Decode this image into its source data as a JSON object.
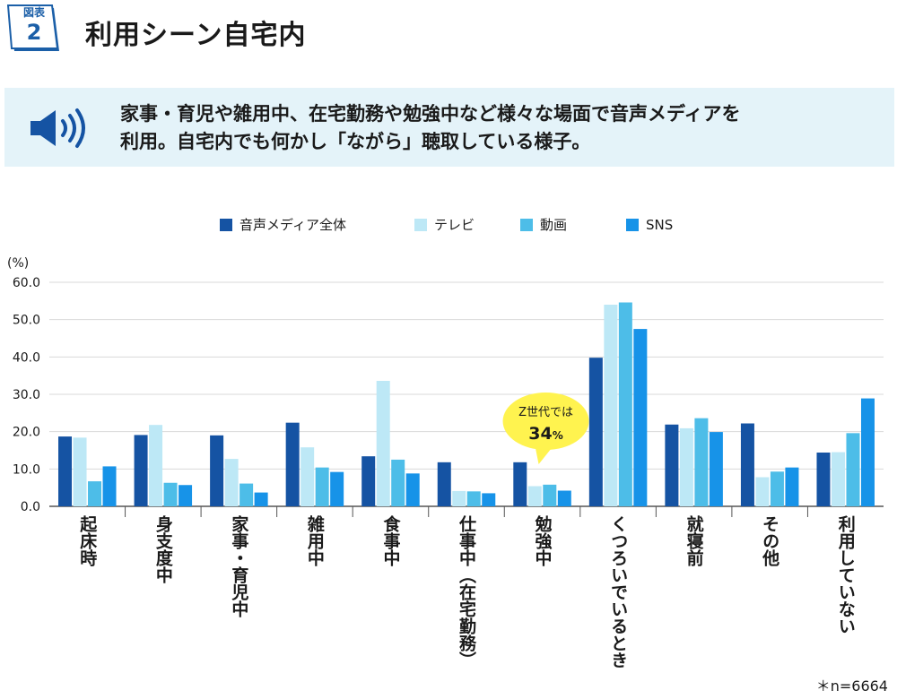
{
  "figure": {
    "label": "図表",
    "number": "2",
    "title": "利用シーン自宅内"
  },
  "summary": {
    "icon": "speaker-icon",
    "lines": [
      "家事・育児や雑用中、在宅勤務や勉強中など様々な場面で音声メディアを",
      "利用。自宅内でも何かし「ながら」聴取している様子。"
    ]
  },
  "colors": {
    "all": "#1553a3",
    "tv": "#bde8f6",
    "video": "#4dbde8",
    "sns": "#1793e8",
    "badge": "#1b5fa8",
    "bubble": "#fff34f"
  },
  "chart_data": {
    "type": "bar",
    "title": "",
    "ylabel": "(%)",
    "ylim": [
      0,
      60
    ],
    "yticks": [
      "0.0",
      "10.0",
      "20.0",
      "30.0",
      "40.0",
      "50.0",
      "60.0"
    ],
    "grid": true,
    "legend_position": "top",
    "categories": [
      "起床時",
      "身支度中",
      "家事・育児中",
      "雑用中",
      "食事中",
      "仕事中（在宅勤務）",
      "勉強中",
      "くつろいでいるとき",
      "就寝前",
      "その他",
      "利用していない"
    ],
    "series": [
      {
        "name": "音声メディア全体",
        "values": [
          18.7,
          19.1,
          19.0,
          22.4,
          13.4,
          11.8,
          11.8,
          39.8,
          21.9,
          22.2,
          14.4
        ]
      },
      {
        "name": "テレビ",
        "values": [
          18.4,
          21.8,
          12.7,
          15.8,
          33.6,
          4.1,
          5.4,
          54.0,
          20.9,
          7.8,
          14.5
        ]
      },
      {
        "name": "動画",
        "values": [
          6.7,
          6.3,
          6.1,
          10.4,
          12.5,
          4.0,
          5.8,
          54.6,
          23.6,
          9.3,
          19.6
        ]
      },
      {
        "name": "SNS",
        "values": [
          10.7,
          5.7,
          3.7,
          9.2,
          8.8,
          3.5,
          4.2,
          47.5,
          19.9,
          10.4,
          28.9
        ]
      }
    ],
    "annotation": {
      "line1": "Z世代では",
      "line2": "34",
      "unit": "%",
      "category": "勉強中"
    }
  },
  "footnote": "＊n=6664"
}
